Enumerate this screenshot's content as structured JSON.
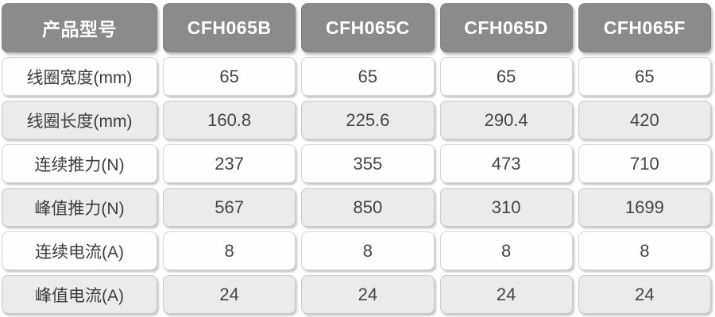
{
  "colors": {
    "header_bg": "#8b8b8b",
    "header_text": "#ffffff",
    "row_white_bg": "#fefefe",
    "row_gray_bg": "#ebebeb",
    "cell_border": "#cccccc",
    "body_text": "#404040",
    "page_bg": "#ffffff"
  },
  "table": {
    "header": [
      "产品型号",
      "CFH065B",
      "CFH065C",
      "CFH065D",
      "CFH065F"
    ],
    "rows": [
      {
        "label": "线圈宽度(mm)",
        "values": [
          "65",
          "65",
          "65",
          "65"
        ]
      },
      {
        "label": "线圈长度(mm)",
        "values": [
          "160.8",
          "225.6",
          "290.4",
          "420"
        ]
      },
      {
        "label": "连续推力(N)",
        "values": [
          "237",
          "355",
          "473",
          "710"
        ]
      },
      {
        "label": "峰值推力(N)",
        "values": [
          "567",
          "850",
          "310",
          "1699"
        ]
      },
      {
        "label": "连续电流(A)",
        "values": [
          "8",
          "8",
          "8",
          "8"
        ]
      },
      {
        "label": "峰值电流(A)",
        "values": [
          "24",
          "24",
          "24",
          "24"
        ]
      }
    ]
  },
  "chart_data": {
    "type": "table",
    "title": "",
    "columns": [
      "产品型号",
      "CFH065B",
      "CFH065C",
      "CFH065D",
      "CFH065F"
    ],
    "rows": [
      [
        "线圈宽度(mm)",
        "65",
        "65",
        "65",
        "65"
      ],
      [
        "线圈长度(mm)",
        "160.8",
        "225.6",
        "290.4",
        "420"
      ],
      [
        "连续推力(N)",
        "237",
        "355",
        "473",
        "710"
      ],
      [
        "峰值推力(N)",
        "567",
        "850",
        "310",
        "1699"
      ],
      [
        "连续电流(A)",
        "8",
        "8",
        "8",
        "8"
      ],
      [
        "峰值电流(A)",
        "24",
        "24",
        "24",
        "24"
      ]
    ]
  }
}
